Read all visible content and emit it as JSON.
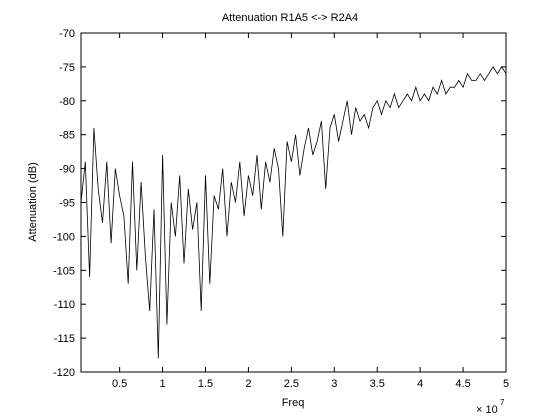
{
  "chart_data": {
    "type": "line",
    "title": "Attenuation R1A5 <-> R2A4",
    "xlabel": "Freq",
    "ylabel": "Attenuation (dB)",
    "x_multiplier_label": "× 10",
    "x_multiplier_exponent": "7",
    "xlim": [
      0.05,
      5.0
    ],
    "ylim": [
      -120,
      -70
    ],
    "x_scale_factor": 10000000,
    "xticks": [
      0.5,
      1,
      1.5,
      2,
      2.5,
      3,
      3.5,
      4,
      4.5,
      5
    ],
    "xtick_labels": [
      "0.5",
      "1",
      "1.5",
      "2",
      "2.5",
      "3",
      "3.5",
      "4",
      "4.5",
      "5"
    ],
    "yticks": [
      -70,
      -75,
      -80,
      -85,
      -90,
      -95,
      -100,
      -105,
      -110,
      -115,
      -120
    ],
    "ytick_labels": [
      "-70",
      "-75",
      "-80",
      "-85",
      "-90",
      "-95",
      "-100",
      "-105",
      "-110",
      "-115",
      "-120"
    ],
    "grid": false,
    "line_color": "#000000",
    "series": [
      {
        "x": [
          0.05,
          0.1,
          0.15,
          0.2,
          0.25,
          0.3,
          0.35,
          0.4,
          0.45,
          0.5,
          0.55,
          0.6,
          0.65,
          0.7,
          0.75,
          0.8,
          0.85,
          0.9,
          0.95,
          1.0,
          1.05,
          1.1,
          1.15,
          1.2,
          1.25,
          1.3,
          1.35,
          1.4,
          1.45,
          1.5,
          1.55,
          1.6,
          1.65,
          1.7,
          1.75,
          1.8,
          1.85,
          1.9,
          1.95,
          2.0,
          2.05,
          2.1,
          2.15,
          2.2,
          2.25,
          2.3,
          2.35,
          2.4,
          2.45,
          2.5,
          2.55,
          2.6,
          2.65,
          2.7,
          2.75,
          2.8,
          2.85,
          2.9,
          2.95,
          3.0,
          3.05,
          3.1,
          3.15,
          3.2,
          3.25,
          3.3,
          3.35,
          3.4,
          3.45,
          3.5,
          3.55,
          3.6,
          3.65,
          3.7,
          3.75,
          3.8,
          3.85,
          3.9,
          3.95,
          4.0,
          4.05,
          4.1,
          4.15,
          4.2,
          4.25,
          4.3,
          4.35,
          4.4,
          4.45,
          4.5,
          4.55,
          4.6,
          4.65,
          4.7,
          4.75,
          4.8,
          4.85,
          4.9,
          4.95,
          5.0
        ],
        "y": [
          -95,
          -89,
          -106,
          -84,
          -93,
          -98,
          -89,
          -101,
          -90,
          -94,
          -97,
          -107,
          -89,
          -105,
          -92,
          -103,
          -111,
          -96,
          -118,
          -88,
          -113,
          -95,
          -100,
          -91,
          -104,
          -93,
          -99,
          -95,
          -111,
          -91,
          -107,
          -94,
          -96,
          -90,
          -100,
          -92,
          -95,
          -89,
          -97,
          -91,
          -94,
          -88,
          -96,
          -89,
          -92,
          -87,
          -90,
          -100,
          -86,
          -89,
          -85,
          -91,
          -87,
          -84,
          -88,
          -86,
          -83,
          -93,
          -84,
          -82,
          -86,
          -83,
          -80,
          -85,
          -81,
          -83,
          -82,
          -84,
          -81,
          -80,
          -82,
          -80,
          -81,
          -79,
          -81,
          -80,
          -79,
          -80,
          -78,
          -80,
          -79,
          -80,
          -78,
          -79,
          -77,
          -79,
          -78,
          -78,
          -77,
          -78,
          -76,
          -77,
          -77,
          -76,
          -77,
          -76,
          -75,
          -76,
          -75,
          -76
        ]
      }
    ]
  }
}
